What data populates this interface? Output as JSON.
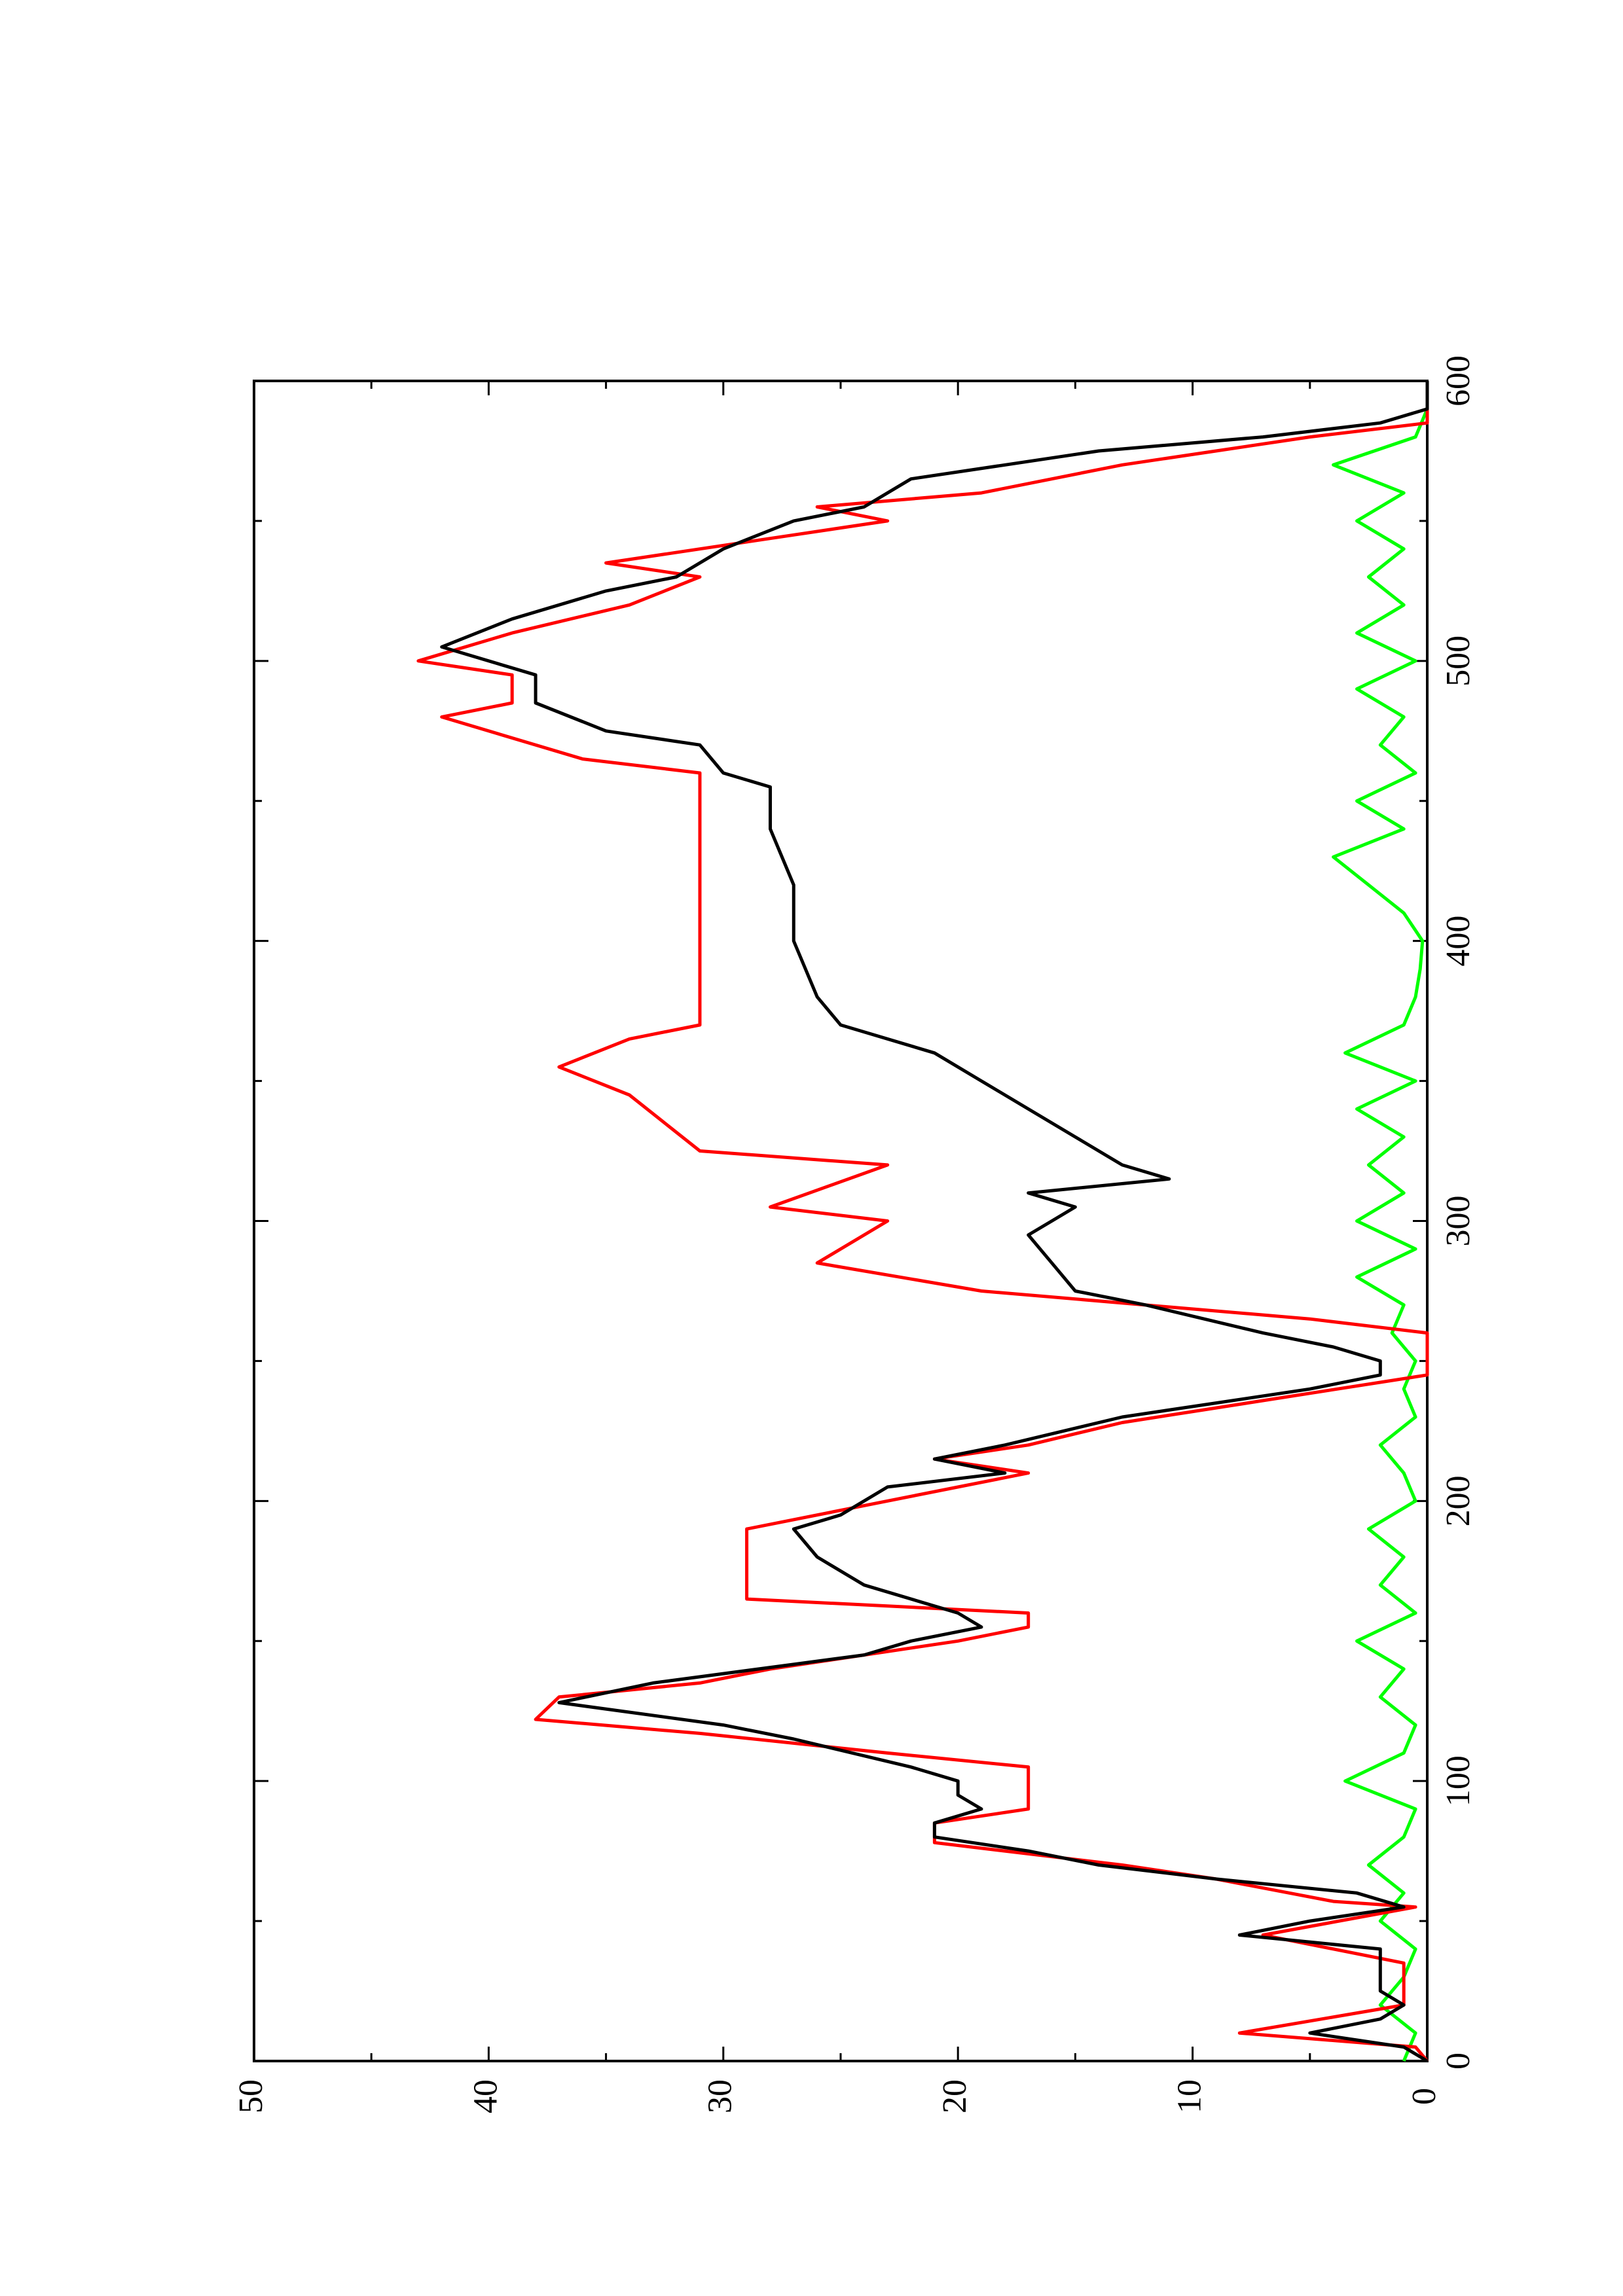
{
  "chart_data": {
    "type": "line",
    "xlim": [
      0,
      600
    ],
    "xticks": [
      0,
      100,
      200,
      300,
      400,
      500,
      600
    ],
    "ylim": [
      0,
      50
    ],
    "yticks": [
      0,
      10,
      20,
      30,
      40,
      50
    ],
    "series": [
      {
        "color": "#ff0000",
        "x": [
          0,
          5,
          10,
          20,
          35,
          45,
          55,
          57,
          65,
          70,
          78,
          85,
          90,
          105,
          110,
          117,
          122,
          130,
          135,
          140,
          150,
          155,
          160,
          165,
          190,
          200,
          210,
          215,
          220,
          228,
          245,
          250,
          260,
          265,
          275,
          285,
          300,
          305,
          320,
          325,
          345,
          355,
          365,
          370,
          460,
          465,
          480,
          485,
          495,
          500,
          510,
          520,
          530,
          535,
          545,
          550,
          555,
          560,
          570,
          575,
          580,
          585,
          600
        ],
        "values": [
          0,
          0.5,
          8,
          1,
          1,
          7,
          0.5,
          4,
          9,
          13,
          21,
          21,
          17,
          17,
          23,
          31,
          38,
          37,
          31,
          28,
          20,
          17,
          17,
          29,
          29,
          23,
          17,
          21,
          17,
          13,
          0,
          0,
          0,
          5,
          19,
          26,
          23,
          28,
          23,
          31,
          34,
          37,
          34,
          31,
          31,
          36,
          42,
          39,
          39,
          43,
          39,
          34,
          31,
          35,
          27,
          23,
          26,
          19,
          13,
          9,
          5,
          0,
          0
        ]
      },
      {
        "color": "#000000",
        "x": [
          0,
          5,
          10,
          15,
          20,
          25,
          35,
          40,
          45,
          50,
          55,
          60,
          65,
          70,
          75,
          80,
          85,
          90,
          95,
          100,
          105,
          115,
          120,
          128,
          135,
          145,
          150,
          155,
          160,
          170,
          180,
          190,
          195,
          205,
          210,
          215,
          220,
          230,
          240,
          245,
          250,
          255,
          260,
          270,
          275,
          285,
          295,
          300,
          305,
          310,
          315,
          320,
          330,
          340,
          350,
          360,
          370,
          380,
          400,
          420,
          440,
          450,
          455,
          460,
          470,
          475,
          485,
          495,
          505,
          515,
          525,
          530,
          540,
          550,
          555,
          565,
          575,
          580,
          585,
          590,
          600
        ],
        "values": [
          0,
          1,
          5,
          2,
          1,
          2,
          2,
          2,
          8,
          5,
          1,
          3,
          9,
          14,
          17,
          21,
          21,
          19,
          20,
          20,
          22,
          27,
          30,
          37,
          33,
          24,
          22,
          19,
          20,
          24,
          26,
          27,
          25,
          23,
          18,
          21,
          18,
          13,
          5,
          2,
          2,
          4,
          7,
          12,
          15,
          16,
          17,
          16,
          15,
          17,
          11,
          13,
          15,
          17,
          19,
          21,
          25,
          26,
          27,
          27,
          28,
          28,
          28,
          30,
          31,
          35,
          38,
          38,
          42,
          39,
          35,
          32,
          30,
          27,
          24,
          22,
          14,
          7,
          2,
          0,
          0
        ]
      },
      {
        "color": "#00ff00",
        "x": [
          0,
          10,
          20,
          30,
          40,
          50,
          60,
          70,
          80,
          90,
          100,
          110,
          120,
          130,
          140,
          150,
          160,
          170,
          180,
          190,
          200,
          210,
          220,
          230,
          240,
          250,
          260,
          270,
          280,
          290,
          300,
          310,
          320,
          330,
          340,
          350,
          360,
          370,
          380,
          390,
          400,
          410,
          420,
          430,
          440,
          450,
          460,
          470,
          480,
          490,
          500,
          510,
          520,
          530,
          540,
          550,
          560,
          570,
          580,
          590
        ],
        "values": [
          1,
          0.5,
          2,
          1,
          0.5,
          2,
          1,
          2.5,
          1,
          0.5,
          3.5,
          1,
          0.5,
          2,
          1,
          3,
          0.5,
          2,
          1,
          2.5,
          0.5,
          1,
          2,
          0.5,
          1,
          0.5,
          1.5,
          1,
          3,
          0.5,
          3,
          1,
          2.5,
          1,
          3,
          0.5,
          3.5,
          1,
          0.5,
          0.3,
          0.2,
          1,
          2.5,
          4,
          1,
          3,
          0.5,
          2,
          1,
          3,
          0.5,
          3,
          1,
          2.5,
          1,
          3,
          1,
          4,
          0.5,
          0
        ]
      }
    ]
  }
}
